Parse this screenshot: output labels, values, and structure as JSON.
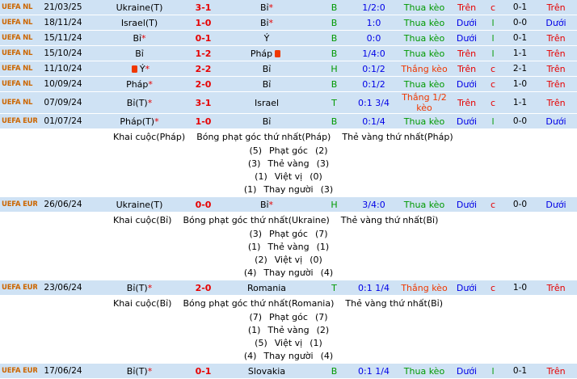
{
  "colors": {
    "row_bg": "#cfe2f4",
    "detail_bg": "#ffffff",
    "league": "#cc6600",
    "score_red": "#e60000",
    "win_red": "#ef3800",
    "lose_green": "#009900",
    "over_red": "#e60000",
    "under_blue": "#0000e6",
    "odds_blue": "#0000e6",
    "even_red": "#e60000",
    "odd_green": "#009900",
    "venue_green": "#009900"
  },
  "rows": [
    {
      "kind": "match",
      "league": "UEFA NL",
      "date": "21/03/25",
      "home": "Ukraine(T)",
      "home_star": false,
      "home_redcard": false,
      "score": "3-1",
      "away": "Bỉ",
      "away_star": true,
      "away_redcard": false,
      "letter": "B",
      "odds": "1/2:0",
      "result": "Thua kèo",
      "result_type": "lose",
      "ou_ft": "Trên",
      "eo": "c",
      "ht": "0-1",
      "ou_ht": "Trên"
    },
    {
      "kind": "match",
      "league": "UEFA NL",
      "date": "18/11/24",
      "home": "Israel(T)",
      "home_star": false,
      "home_redcard": false,
      "score": "1-0",
      "away": "Bỉ",
      "away_star": true,
      "away_redcard": false,
      "letter": "B",
      "odds": "1:0",
      "result": "Thua kèo",
      "result_type": "lose",
      "ou_ft": "Dưới",
      "eo": "l",
      "ht": "0-0",
      "ou_ht": "Dưới"
    },
    {
      "kind": "match",
      "league": "UEFA NL",
      "date": "15/11/24",
      "home": "Bỉ",
      "home_star": true,
      "home_redcard": false,
      "score": "0-1",
      "away": "Ý",
      "away_star": false,
      "away_redcard": false,
      "letter": "B",
      "odds": "0:0",
      "result": "Thua kèo",
      "result_type": "lose",
      "ou_ft": "Dưới",
      "eo": "l",
      "ht": "0-1",
      "ou_ht": "Trên"
    },
    {
      "kind": "match",
      "league": "UEFA NL",
      "date": "15/10/24",
      "home": "Bỉ",
      "home_star": false,
      "home_redcard": false,
      "score": "1-2",
      "away": "Pháp",
      "away_star": false,
      "away_redcard": true,
      "letter": "B",
      "odds": "1/4:0",
      "result": "Thua kèo",
      "result_type": "lose",
      "ou_ft": "Trên",
      "eo": "l",
      "ht": "1-1",
      "ou_ht": "Trên"
    },
    {
      "kind": "match",
      "league": "UEFA NL",
      "date": "11/10/24",
      "home": "Ý",
      "home_star": true,
      "home_redcard": true,
      "score": "2-2",
      "away": "Bỉ",
      "away_star": false,
      "away_redcard": false,
      "letter": "H",
      "odds": "0:1/2",
      "result": "Thắng kèo",
      "result_type": "win",
      "ou_ft": "Trên",
      "eo": "c",
      "ht": "2-1",
      "ou_ht": "Trên"
    },
    {
      "kind": "match",
      "league": "UEFA NL",
      "date": "10/09/24",
      "home": "Pháp",
      "home_star": true,
      "home_redcard": false,
      "score": "2-0",
      "away": "Bỉ",
      "away_star": false,
      "away_redcard": false,
      "letter": "B",
      "odds": "0:1/2",
      "result": "Thua kèo",
      "result_type": "lose",
      "ou_ft": "Dưới",
      "eo": "c",
      "ht": "1-0",
      "ou_ht": "Trên"
    },
    {
      "kind": "match",
      "league": "UEFA NL",
      "date": "07/09/24",
      "home": "Bỉ(T)",
      "home_star": true,
      "home_redcard": false,
      "score": "3-1",
      "away": "Israel",
      "away_star": false,
      "away_redcard": false,
      "letter": "T",
      "odds": "0:1 3/4",
      "result": "Thắng 1/2 kèo",
      "result_type": "win",
      "ou_ft": "Trên",
      "eo": "c",
      "ht": "1-1",
      "ou_ht": "Trên"
    },
    {
      "kind": "match",
      "league": "UEFA EURO",
      "date": "01/07/24",
      "home": "Pháp(T)",
      "home_star": true,
      "home_redcard": false,
      "score": "1-0",
      "away": "Bỉ",
      "away_star": false,
      "away_redcard": false,
      "letter": "B",
      "odds": "0:1/4",
      "result": "Thua kèo",
      "result_type": "lose",
      "ou_ft": "Dưới",
      "eo": "l",
      "ht": "0-0",
      "ou_ht": "Dưới"
    },
    {
      "kind": "detail",
      "kickoff": "Khai cuộc(Pháp)",
      "first_corner": "Bóng phạt góc thứ nhất(Pháp)",
      "first_yellow": "Thẻ vàng thứ nhất(Pháp)",
      "stats": [
        {
          "left": "(5)",
          "label": "Phạt góc",
          "right": "(2)"
        },
        {
          "left": "(3)",
          "label": "Thẻ vàng",
          "right": "(3)"
        },
        {
          "left": "(1)",
          "label": "Việt vị",
          "right": "(0)"
        },
        {
          "left": "(1)",
          "label": "Thay người",
          "right": "(3)"
        }
      ]
    },
    {
      "kind": "match",
      "league": "UEFA EURO",
      "date": "26/06/24",
      "home": "Ukraine(T)",
      "home_star": false,
      "home_redcard": false,
      "score": "0-0",
      "away": "Bỉ",
      "away_star": true,
      "away_redcard": false,
      "letter": "H",
      "odds": "3/4:0",
      "result": "Thua kèo",
      "result_type": "lose",
      "ou_ft": "Dưới",
      "eo": "c",
      "ht": "0-0",
      "ou_ht": "Dưới"
    },
    {
      "kind": "detail",
      "kickoff": "Khai cuộc(Bỉ)",
      "first_corner": "Bóng phạt góc thứ nhất(Ukraine)",
      "first_yellow": "Thẻ vàng thứ nhất(Bỉ)",
      "stats": [
        {
          "left": "(3)",
          "label": "Phạt góc",
          "right": "(7)"
        },
        {
          "left": "(1)",
          "label": "Thẻ vàng",
          "right": "(1)"
        },
        {
          "left": "(2)",
          "label": "Việt vị",
          "right": "(0)"
        },
        {
          "left": "(4)",
          "label": "Thay người",
          "right": "(4)"
        }
      ]
    },
    {
      "kind": "match",
      "league": "UEFA EURO",
      "date": "23/06/24",
      "home": "Bỉ(T)",
      "home_star": true,
      "home_redcard": false,
      "score": "2-0",
      "away": "Romania",
      "away_star": false,
      "away_redcard": false,
      "letter": "T",
      "odds": "0:1 1/4",
      "result": "Thắng kèo",
      "result_type": "win",
      "ou_ft": "Dưới",
      "eo": "c",
      "ht": "1-0",
      "ou_ht": "Trên"
    },
    {
      "kind": "detail",
      "kickoff": "Khai cuộc(Bỉ)",
      "first_corner": "Bóng phạt góc thứ nhất(Romania)",
      "first_yellow": "Thẻ vàng thứ nhất(Bỉ)",
      "stats": [
        {
          "left": "(7)",
          "label": "Phạt góc",
          "right": "(7)"
        },
        {
          "left": "(1)",
          "label": "Thẻ vàng",
          "right": "(2)"
        },
        {
          "left": "(5)",
          "label": "Việt vị",
          "right": "(1)"
        },
        {
          "left": "(4)",
          "label": "Thay người",
          "right": "(4)"
        }
      ]
    },
    {
      "kind": "match",
      "league": "UEFA EURO",
      "date": "17/06/24",
      "home": "Bỉ(T)",
      "home_star": true,
      "home_redcard": false,
      "score": "0-1",
      "away": "Slovakia",
      "away_star": false,
      "away_redcard": false,
      "letter": "B",
      "odds": "0:1 1/4",
      "result": "Thua kèo",
      "result_type": "lose",
      "ou_ft": "Dưới",
      "eo": "l",
      "ht": "0-1",
      "ou_ht": "Trên"
    }
  ]
}
